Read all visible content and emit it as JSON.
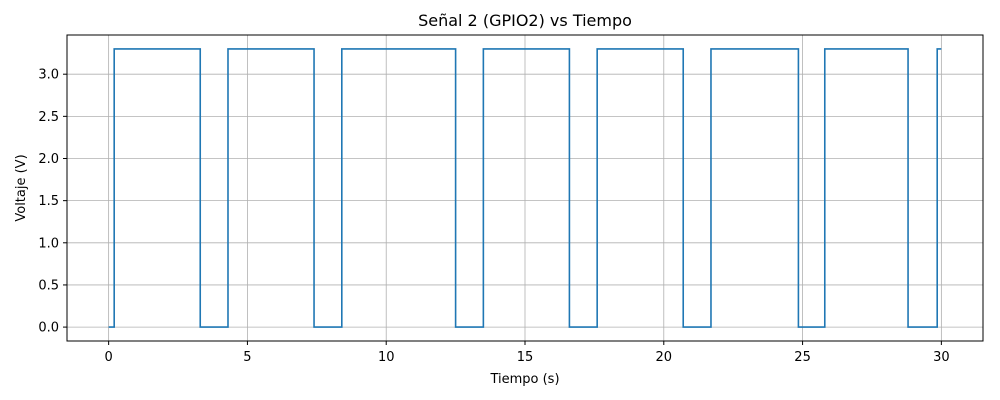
{
  "chart_data": {
    "type": "line",
    "title": "Señal 2 (GPIO2) vs Tiempo",
    "xlabel": "Tiempo (s)",
    "ylabel": "Voltaje (V)",
    "xlim": [
      -1.5,
      31.5
    ],
    "ylim": [
      -0.165,
      3.465
    ],
    "x_ticks": [
      0,
      5,
      10,
      15,
      20,
      25,
      30
    ],
    "x_tick_labels": [
      "0",
      "5",
      "10",
      "15",
      "20",
      "25",
      "30"
    ],
    "y_ticks": [
      0.0,
      0.5,
      1.0,
      1.5,
      2.0,
      2.5,
      3.0
    ],
    "y_tick_labels": [
      "0.0",
      "0.5",
      "1.0",
      "1.5",
      "2.0",
      "2.5",
      "3.0"
    ],
    "grid": true,
    "line_color": "#1f77b4",
    "grid_color": "#b0b0b0",
    "series": [
      {
        "drawstyle": "steps-post",
        "x": [
          0.0,
          0.2,
          3.3,
          4.3,
          7.4,
          8.4,
          12.5,
          13.5,
          16.6,
          17.6,
          20.7,
          21.7,
          24.85,
          25.8,
          28.8,
          29.85,
          30.0
        ],
        "y": [
          0.0,
          3.3,
          0.0,
          3.3,
          0.0,
          3.3,
          0.0,
          3.3,
          0.0,
          3.3,
          0.0,
          3.3,
          0.0,
          3.3,
          0.0,
          3.3,
          3.3
        ]
      }
    ]
  }
}
